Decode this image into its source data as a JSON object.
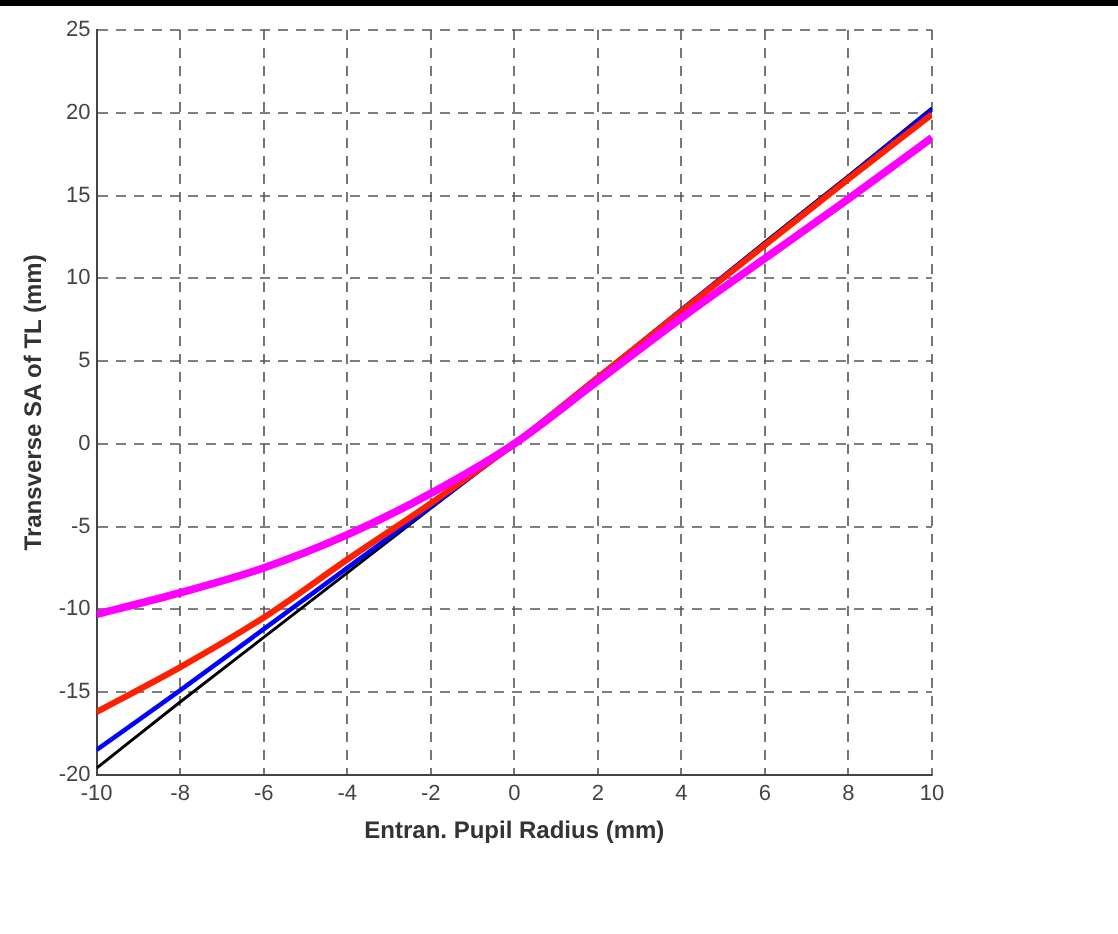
{
  "chart_data": {
    "type": "line",
    "xlabel": "Entran. Pupil Radius (mm)",
    "ylabel": "Transverse SA of TL (mm)",
    "x": [
      -10,
      -8,
      -6,
      -4,
      -2,
      0,
      2,
      4,
      6,
      8,
      10
    ],
    "series": [
      {
        "color": "#ff00ff",
        "values": [
          -10.3,
          -9,
          -7.5,
          -5.5,
          -3,
          0,
          3.8,
          7.6,
          11.2,
          14.8,
          18.5
        ]
      },
      {
        "color": "#ff2000",
        "values": [
          -16.2,
          -13.5,
          -10.5,
          -7,
          -3.6,
          0,
          4,
          8,
          12,
          16,
          19.9
        ]
      },
      {
        "color": "#0000ff",
        "values": [
          -18.5,
          -14.9,
          -11.2,
          -7.5,
          -3.8,
          0,
          4,
          8.1,
          12.1,
          16.1,
          20.2
        ]
      },
      {
        "color": "#000000",
        "values": [
          -19.6,
          -15.6,
          -11.7,
          -7.8,
          -3.9,
          0,
          4.1,
          8.1,
          12.2,
          16.2,
          20.3
        ]
      }
    ],
    "xlim": [
      -10,
      10
    ],
    "xticks": [
      -10,
      -8,
      -6,
      -4,
      -2,
      0,
      2,
      4,
      6,
      8,
      10
    ],
    "ylim": [
      -20,
      25
    ],
    "yticks": [
      -20,
      -15,
      -10,
      -5,
      0,
      5,
      10,
      15,
      20,
      25
    ],
    "grid": true,
    "line_style": "solid",
    "marker": "none"
  }
}
